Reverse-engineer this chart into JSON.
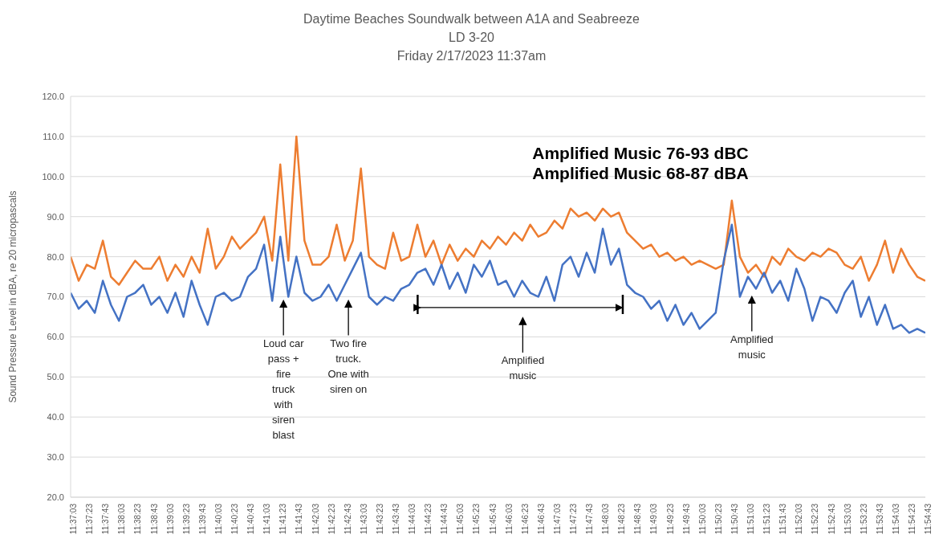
{
  "chart_data": {
    "type": "line",
    "title": "Daytime Beaches Soundwalk between A1A and Seabreeze",
    "subtitle": "LD 3-20\nFriday 2/17/2023 11:37am",
    "ylabel": "Sound Pressure Level in dBA, re 20 micropascals",
    "categories": [
      "11:37:03",
      null,
      "11:37:23",
      null,
      "11:37:43",
      null,
      "11:38:03",
      null,
      "11:38:23",
      null,
      "11:38:43",
      null,
      "11:39:03",
      null,
      "11:39:23",
      null,
      "11:39:43",
      null,
      "11:40:03",
      null,
      "11:40:23",
      null,
      "11:40:43",
      null,
      "11:41:03",
      null,
      "11:41:23",
      null,
      "11:41:43",
      null,
      "11:42:03",
      null,
      "11:42:23",
      null,
      "11:42:43",
      null,
      "11:43:03",
      null,
      "11:43:23",
      null,
      "11:43:43",
      null,
      "11:44:03",
      null,
      "11:44:23",
      null,
      "11:44:43",
      null,
      "11:45:03",
      null,
      "11:45:23",
      null,
      "11:45:43",
      null,
      "11:46:03",
      null,
      "11:46:23",
      null,
      "11:46:43",
      null,
      "11:47:03",
      null,
      "11:47:23",
      null,
      "11:47:43",
      null,
      "11:48:03",
      null,
      "11:48:23",
      null,
      "11:48:43",
      null,
      "11:49:03",
      null,
      "11:49:23",
      null,
      "11:49:43",
      null,
      "11:50:03",
      null,
      "11:50:23",
      null,
      "11:50:43",
      null,
      "11:51:03",
      null,
      "11:51:23",
      null,
      "11:51:43",
      null,
      "11:52:03",
      null,
      "11:52:23",
      null,
      "11:52:43",
      null,
      "11:53:03",
      null,
      "11:53:23",
      null,
      "11:53:43",
      null,
      "11:54:03",
      null,
      "11:54:23",
      null,
      "11:54:43"
    ],
    "series": [
      {
        "color": "#ed7d31",
        "values": [
          80,
          74,
          78,
          77,
          84,
          75,
          73,
          76,
          79,
          77,
          77,
          80,
          74,
          78,
          75,
          80,
          76,
          87,
          77,
          80,
          85,
          82,
          84,
          86,
          90,
          79,
          103,
          79,
          110,
          84,
          78,
          78,
          80,
          88,
          79,
          84,
          102,
          80,
          78,
          77,
          86,
          79,
          80,
          88,
          80,
          84,
          78,
          83,
          79,
          82,
          80,
          84,
          82,
          85,
          83,
          86,
          84,
          88,
          85,
          86,
          89,
          87,
          92,
          90,
          91,
          89,
          92,
          90,
          91,
          86,
          84,
          82,
          83,
          80,
          81,
          79,
          80,
          78,
          79,
          78,
          77,
          78,
          94,
          80,
          76,
          78,
          75,
          80,
          78,
          82,
          80,
          79,
          81,
          80,
          82,
          81,
          78,
          77,
          80,
          74,
          78,
          84,
          76,
          82,
          78,
          75,
          74
        ]
      },
      {
        "color": "#4472c4",
        "values": [
          71,
          67,
          69,
          66,
          74,
          68,
          64,
          70,
          71,
          73,
          68,
          70,
          66,
          71,
          65,
          74,
          68,
          63,
          70,
          71,
          69,
          70,
          75,
          77,
          83,
          69,
          85,
          70,
          80,
          71,
          69,
          70,
          73,
          69,
          73,
          77,
          81,
          70,
          68,
          70,
          69,
          72,
          73,
          76,
          77,
          73,
          78,
          72,
          76,
          71,
          78,
          75,
          79,
          73,
          74,
          70,
          74,
          71,
          70,
          75,
          69,
          78,
          80,
          75,
          81,
          76,
          87,
          78,
          82,
          73,
          71,
          70,
          67,
          69,
          64,
          68,
          63,
          66,
          62,
          64,
          66,
          79,
          88,
          70,
          75,
          72,
          76,
          71,
          74,
          69,
          77,
          72,
          64,
          70,
          69,
          66,
          71,
          74,
          65,
          70,
          63,
          68,
          62,
          63,
          61,
          62,
          61
        ]
      }
    ],
    "ylim": [
      20,
      120
    ],
    "yticks": [
      {
        "value": 20,
        "label": "20.0"
      },
      {
        "value": 30,
        "label": "30.0"
      },
      {
        "value": 40,
        "label": "40.0"
      },
      {
        "value": 50,
        "label": "50.0"
      },
      {
        "value": 60,
        "label": "60.0"
      },
      {
        "value": 70,
        "label": "70.0"
      },
      {
        "value": 80,
        "label": "80.0"
      },
      {
        "value": 90,
        "label": "90.0"
      },
      {
        "value": 100,
        "label": "100.0"
      },
      {
        "value": 110,
        "label": "110.0"
      },
      {
        "value": 120,
        "label": "120.0"
      }
    ],
    "grid": "y",
    "annotations": [
      "Amplified Music 76-93 dBC",
      "Amplified Music 68-87 dBA",
      "Loud car pass + fire truck with siren blast",
      "Two fire truck. One with siren on",
      "Amplified music",
      "Amplified music"
    ]
  }
}
